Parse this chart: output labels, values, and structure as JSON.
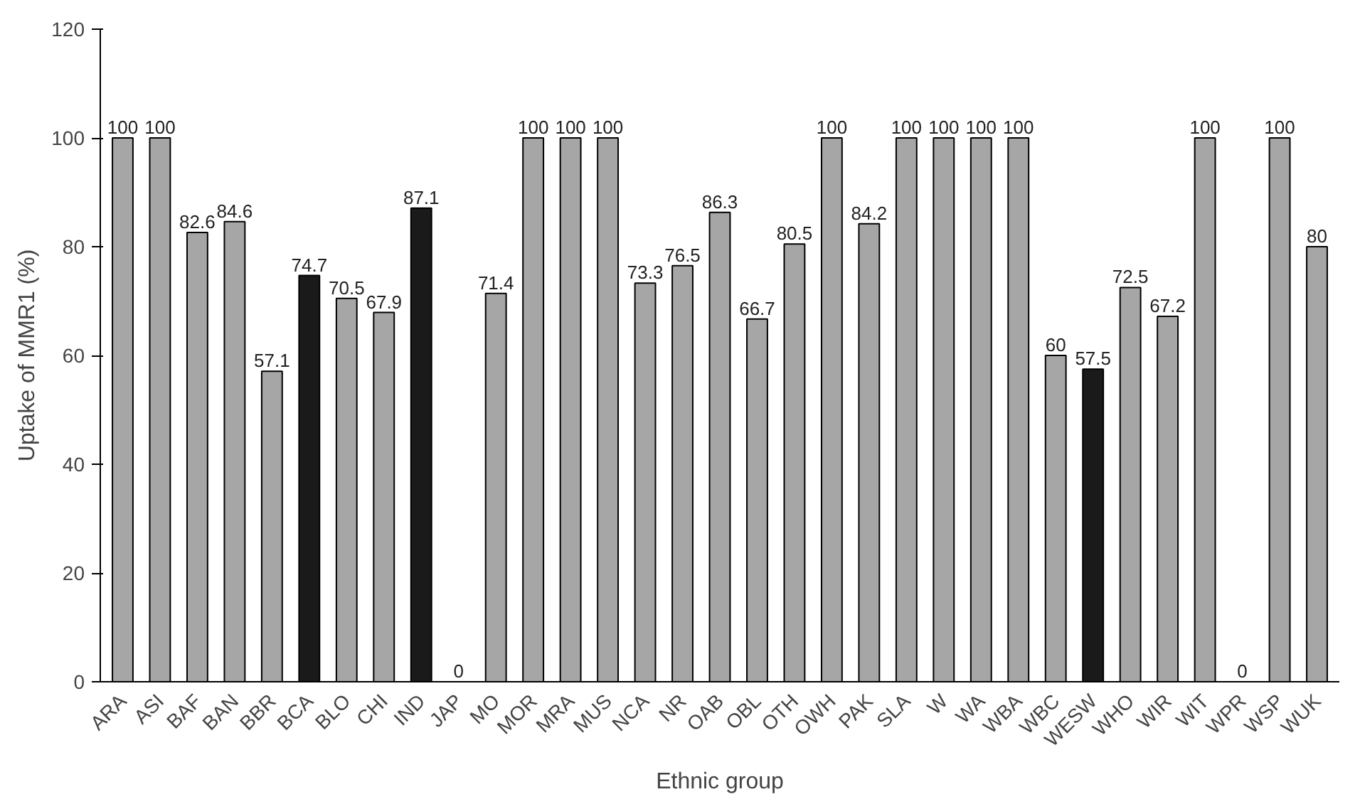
{
  "chart_data": {
    "type": "bar",
    "xlabel": "Ethnic group",
    "ylabel": "Uptake of MMR1 (%)",
    "categories": [
      "ARA",
      "ASI",
      "BAF",
      "BAN",
      "BBR",
      "BCA",
      "BLO",
      "CHI",
      "IND",
      "JAP",
      "MO",
      "MOR",
      "MRA",
      "MUS",
      "NCA",
      "NR",
      "OAB",
      "OBL",
      "OTH",
      "OWH",
      "PAK",
      "SLA",
      "W",
      "WA",
      "WBA",
      "WBC",
      "WESW",
      "WHO",
      "WIR",
      "WIT",
      "WPR",
      "WSP",
      "WUK"
    ],
    "values": [
      100,
      100,
      82.6,
      84.6,
      57.1,
      74.7,
      70.5,
      67.9,
      87.1,
      0,
      71.4,
      100,
      100,
      100,
      73.3,
      76.5,
      86.3,
      66.7,
      80.5,
      100,
      84.2,
      100,
      100,
      100,
      100,
      60,
      57.5,
      72.5,
      67.2,
      100,
      0,
      100,
      80
    ],
    "colors": [
      "#a6a6a6",
      "#a6a6a6",
      "#a6a6a6",
      "#a6a6a6",
      "#a6a6a6",
      "#1a1a1a",
      "#a6a6a6",
      "#a6a6a6",
      "#1a1a1a",
      "#a6a6a6",
      "#a6a6a6",
      "#a6a6a6",
      "#a6a6a6",
      "#a6a6a6",
      "#a6a6a6",
      "#a6a6a6",
      "#a6a6a6",
      "#a6a6a6",
      "#a6a6a6",
      "#a6a6a6",
      "#a6a6a6",
      "#a6a6a6",
      "#a6a6a6",
      "#a6a6a6",
      "#a6a6a6",
      "#a6a6a6",
      "#1a1a1a",
      "#a6a6a6",
      "#a6a6a6",
      "#a6a6a6",
      "#a6a6a6",
      "#a6a6a6",
      "#a6a6a6"
    ],
    "ylim": [
      0,
      120
    ],
    "yticks": [
      0,
      20,
      40,
      60,
      80,
      100,
      120
    ],
    "data_labels": true,
    "grid": false
  }
}
